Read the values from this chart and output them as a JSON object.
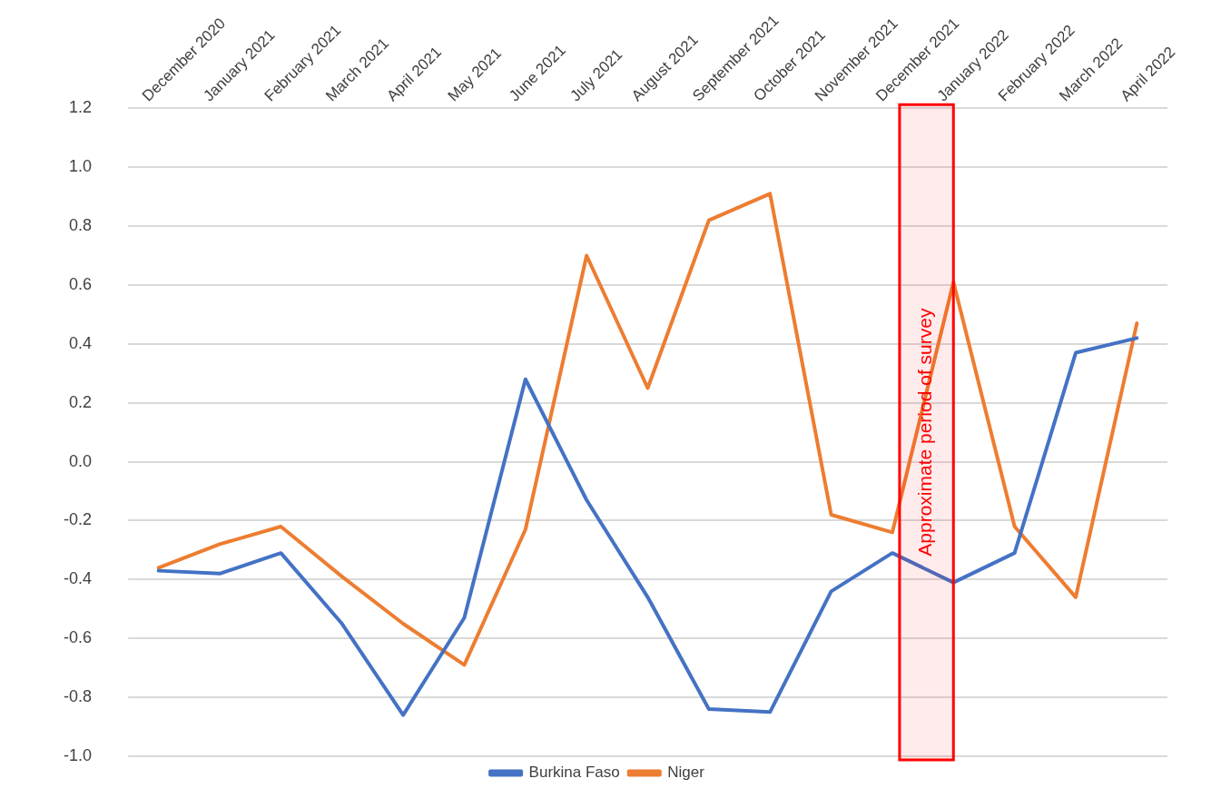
{
  "chart_data": {
    "type": "line",
    "categories": [
      "December 2020",
      "January 2021",
      "February 2021",
      "March 2021",
      "April 2021",
      "May 2021",
      "June 2021",
      "July 2021",
      "August 2021",
      "September 2021",
      "October 2021",
      "November 2021",
      "December 2021",
      "January 2022",
      "February 2022",
      "March 2022",
      "April 2022"
    ],
    "series": [
      {
        "name": "Burkina Faso",
        "color": "#4472c4",
        "values": [
          -0.37,
          -0.38,
          -0.31,
          -0.55,
          -0.86,
          -0.53,
          0.28,
          -0.13,
          -0.46,
          -0.84,
          -0.85,
          -0.44,
          -0.31,
          -0.41,
          -0.31,
          0.37,
          0.42
        ]
      },
      {
        "name": "Niger",
        "color": "#ed7d31",
        "values": [
          -0.36,
          -0.28,
          -0.22,
          -0.39,
          -0.55,
          -0.69,
          -0.23,
          0.7,
          0.25,
          0.82,
          0.91,
          -0.18,
          -0.24,
          0.61,
          -0.22,
          -0.46,
          0.47
        ]
      }
    ],
    "ylim": [
      -1.0,
      1.2
    ],
    "yticks": [
      {
        "value": -1.0,
        "label": "-1.0"
      },
      -0.8,
      -0.6,
      -0.4,
      -0.2,
      {
        "value": 0,
        "label": "0.0"
      },
      0.2,
      0.4,
      0.6,
      0.8,
      {
        "value": 1.0,
        "label": "1.0"
      },
      1.2
    ],
    "bands": [
      {
        "axis": "x",
        "from": "December 2021",
        "to": "January 2022",
        "label": "Approximate period of survey",
        "color": "#ff0000"
      }
    ],
    "grid": "y",
    "legend": "bottom",
    "marker": "none",
    "line_style": "solid"
  }
}
